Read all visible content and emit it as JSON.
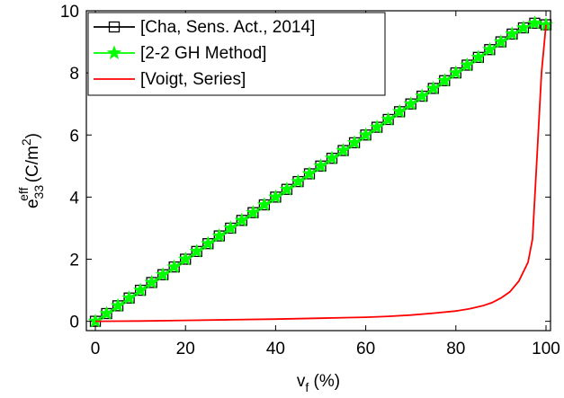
{
  "chart_data": {
    "type": "line",
    "title": "",
    "xlabel": {
      "main": "v",
      "sub": "f",
      "rest": " (%)"
    },
    "ylabel": {
      "main": "e",
      "sub": "33",
      "sup": "eff",
      "rest": " (C/m",
      "unit_sup": "2",
      "close": ")"
    },
    "xlim": [
      -2,
      101
    ],
    "ylim": [
      -0.3,
      10
    ],
    "xticks": [
      0,
      20,
      40,
      60,
      80,
      100
    ],
    "yticks": [
      0,
      2,
      4,
      6,
      8,
      10
    ],
    "grid": false,
    "legend_placement": "top-left",
    "series": [
      {
        "name": "[Cha, Sens. Act., 2014]",
        "color": "#000000",
        "marker": "square",
        "x": [
          0,
          2.5,
          5,
          7.5,
          10,
          12.5,
          15,
          17.5,
          20,
          22.5,
          25,
          27.5,
          30,
          32.5,
          35,
          37.5,
          40,
          42.5,
          45,
          47.5,
          50,
          52.5,
          55,
          57.5,
          60,
          62.5,
          65,
          67.5,
          70,
          72.5,
          75,
          77.5,
          80,
          82.5,
          85,
          87.5,
          90,
          92.5,
          95,
          97.5,
          100
        ],
        "y": [
          0,
          0.25,
          0.5,
          0.75,
          1.0,
          1.25,
          1.5,
          1.75,
          2.0,
          2.25,
          2.5,
          2.75,
          3.0,
          3.25,
          3.5,
          3.75,
          4.0,
          4.25,
          4.5,
          4.75,
          5.0,
          5.25,
          5.5,
          5.75,
          6.0,
          6.25,
          6.5,
          6.75,
          7.0,
          7.25,
          7.5,
          7.75,
          8.0,
          8.25,
          8.5,
          8.75,
          9.0,
          9.25,
          9.45,
          9.6,
          9.55
        ]
      },
      {
        "name": "[2-2 GH Method]",
        "color": "#00ff00",
        "marker": "star",
        "x": [
          0,
          2.5,
          5,
          7.5,
          10,
          12.5,
          15,
          17.5,
          20,
          22.5,
          25,
          27.5,
          30,
          32.5,
          35,
          37.5,
          40,
          42.5,
          45,
          47.5,
          50,
          52.5,
          55,
          57.5,
          60,
          62.5,
          65,
          67.5,
          70,
          72.5,
          75,
          77.5,
          80,
          82.5,
          85,
          87.5,
          90,
          92.5,
          95,
          97.5,
          100
        ],
        "y": [
          0,
          0.25,
          0.5,
          0.75,
          1.0,
          1.25,
          1.5,
          1.75,
          2.0,
          2.25,
          2.5,
          2.75,
          3.0,
          3.25,
          3.5,
          3.75,
          4.0,
          4.25,
          4.5,
          4.75,
          5.0,
          5.25,
          5.5,
          5.75,
          6.0,
          6.25,
          6.5,
          6.75,
          7.0,
          7.25,
          7.5,
          7.75,
          8.0,
          8.25,
          8.5,
          8.75,
          9.0,
          9.25,
          9.45,
          9.6,
          9.55
        ]
      },
      {
        "name": "[Voigt, Series]",
        "color": "#ff0000",
        "marker": "none",
        "x": [
          0,
          10,
          20,
          30,
          40,
          50,
          60,
          65,
          70,
          75,
          80,
          83,
          86,
          88,
          90,
          92,
          94,
          96,
          97,
          98,
          99,
          100
        ],
        "y": [
          0,
          0.01,
          0.03,
          0.05,
          0.07,
          0.1,
          0.13,
          0.16,
          0.2,
          0.26,
          0.33,
          0.4,
          0.5,
          0.6,
          0.75,
          0.95,
          1.3,
          1.9,
          2.65,
          5.3,
          8.0,
          9.55
        ]
      }
    ]
  }
}
